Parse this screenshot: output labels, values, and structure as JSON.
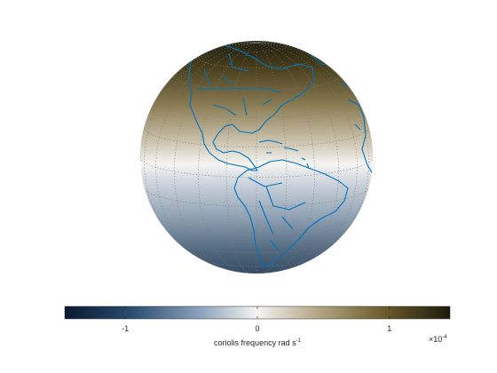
{
  "chart_data": {
    "type": "map",
    "projection": "orthographic",
    "view_center": {
      "lon": -75,
      "lat": 10
    },
    "field": "coriolis frequency",
    "grid": "dotted graticule",
    "coastline_color": "#0072BD",
    "colorbar": {
      "orientation": "horizontal",
      "range": [
        -0.000145842,
        0.000145842
      ],
      "ticks": [
        -1,
        0,
        1
      ],
      "tick_labels": [
        "-1",
        "0",
        "1"
      ],
      "exponent_label": "×10",
      "exponent_power": "-4",
      "label_main": "coriolis frequency rad s",
      "label_power": "-1",
      "colormap": [
        "#0a1a2e",
        "#2a4a6e",
        "#8aa3bb",
        "#f4f4f2",
        "#b8a88a",
        "#6b5a2a",
        "#1c1a0a"
      ]
    }
  }
}
